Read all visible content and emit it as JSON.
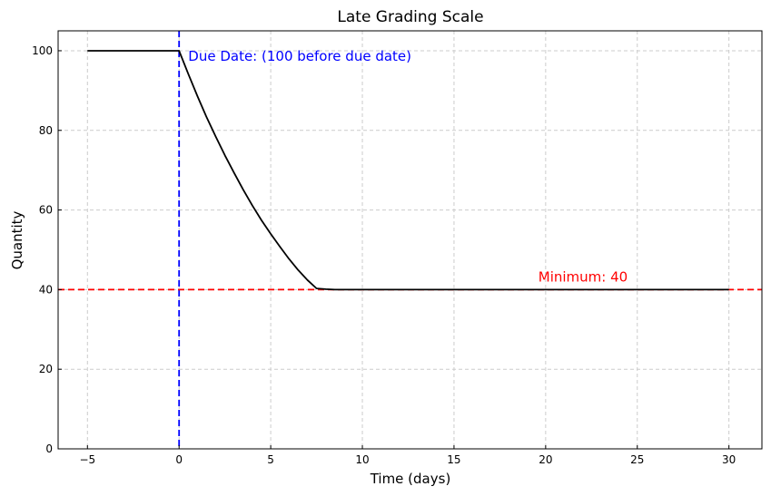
{
  "chart_data": {
    "type": "line",
    "title": "Late Grading Scale",
    "xlabel": "Time (days)",
    "ylabel": "Quantity",
    "xlim": [
      -6.6,
      31.8
    ],
    "ylim": [
      0,
      105
    ],
    "xticks": [
      -5,
      0,
      5,
      10,
      15,
      20,
      25,
      30
    ],
    "xtick_labels": [
      "−5",
      "0",
      "5",
      "10",
      "15",
      "20",
      "25",
      "30"
    ],
    "yticks": [
      0,
      20,
      40,
      60,
      80,
      100
    ],
    "ytick_labels": [
      "0",
      "20",
      "40",
      "60",
      "80",
      "100"
    ],
    "grid": true,
    "series": [
      {
        "name": "grade",
        "color": "#000000",
        "x": [
          -5,
          -4,
          -3,
          -2,
          -1,
          0,
          0.5,
          1,
          1.5,
          2,
          2.5,
          3,
          3.5,
          4,
          4.5,
          5,
          5.5,
          6,
          6.5,
          7,
          7.5,
          8,
          8.5,
          9,
          9.2,
          10,
          15,
          20,
          25,
          30
        ],
        "y": [
          100,
          100,
          100,
          100,
          100,
          100,
          94.2,
          88.6,
          83.3,
          78.4,
          73.7,
          69.3,
          65.1,
          61.1,
          57.4,
          54.0,
          50.8,
          47.7,
          44.9,
          42.4,
          40.3,
          40.1,
          40.0,
          40.0,
          40,
          40,
          40,
          40,
          40,
          40
        ]
      }
    ],
    "reference_lines": [
      {
        "orientation": "vertical",
        "value": 0,
        "color": "#0000ff",
        "style": "dashed"
      },
      {
        "orientation": "horizontal",
        "value": 40,
        "color": "#ff0000",
        "style": "dashed"
      }
    ],
    "annotations": [
      {
        "text": "Due Date: (100 before due date)",
        "x": 0.5,
        "y": 97.5,
        "color": "#0000ff"
      },
      {
        "text": "Minimum: 40",
        "x": 19.6,
        "y": 42,
        "color": "#ff0000"
      }
    ]
  }
}
